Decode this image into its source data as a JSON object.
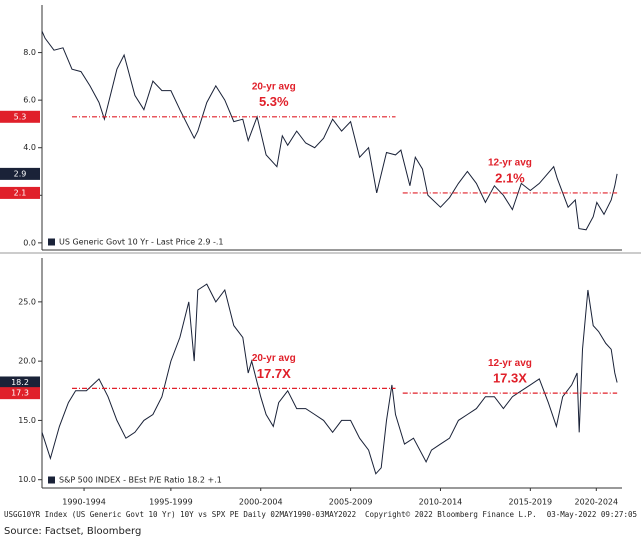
{
  "chart_data": [
    {
      "type": "line",
      "series": [
        {
          "name": "US Generic Govt 10 Yr - Last Price 2.9  -.1",
          "color": "#1a2238",
          "x": [
            1990.33,
            1990.5,
            1991,
            1991.5,
            1992,
            1992.5,
            1993,
            1993.5,
            1993.8,
            1994,
            1994.5,
            1994.9,
            1995.5,
            1996,
            1996.5,
            1997,
            1997.5,
            1998,
            1998.8,
            1999,
            1999.5,
            2000,
            2000.5,
            2001,
            2001.5,
            2001.8,
            2002.3,
            2002.8,
            2003.4,
            2003.7,
            2004,
            2004.5,
            2005,
            2005.5,
            2006,
            2006.5,
            2007,
            2007.5,
            2008,
            2008.5,
            2008.95,
            2009.5,
            2010,
            2010.3,
            2010.8,
            2011.1,
            2011.5,
            2011.8,
            2012.5,
            2013,
            2013.5,
            2014,
            2014.5,
            2015,
            2015.5,
            2016,
            2016.5,
            2017,
            2017.5,
            2018,
            2018.8,
            2019,
            2019.6,
            2020,
            2020.2,
            2020.6,
            2021,
            2021.2,
            2021.6,
            2022,
            2022.2,
            2022.33
          ],
          "values": [
            8.9,
            8.6,
            8.1,
            8.2,
            7.3,
            7.2,
            6.6,
            5.9,
            5.2,
            5.8,
            7.3,
            7.9,
            6.2,
            5.6,
            6.8,
            6.4,
            6.4,
            5.6,
            4.4,
            4.7,
            5.9,
            6.6,
            6.0,
            5.1,
            5.2,
            4.3,
            5.3,
            3.7,
            3.2,
            4.5,
            4.1,
            4.7,
            4.2,
            4.0,
            4.4,
            5.2,
            4.7,
            5.1,
            3.6,
            4.0,
            2.1,
            3.8,
            3.7,
            3.9,
            2.4,
            3.6,
            3.1,
            2.0,
            1.5,
            1.9,
            2.5,
            3.0,
            2.5,
            1.7,
            2.4,
            2.0,
            1.4,
            2.5,
            2.2,
            2.5,
            3.2,
            2.7,
            1.5,
            1.8,
            0.6,
            0.55,
            1.1,
            1.7,
            1.2,
            1.8,
            2.4,
            2.9
          ]
        }
      ],
      "xlim": [
        1990.33,
        2022.6
      ],
      "ylim": [
        -0.3,
        10
      ],
      "yticks": [
        {
          "value": 0,
          "label": "0.0"
        },
        {
          "value": 2,
          "label": "2.0"
        },
        {
          "value": 4,
          "label": "4.0"
        },
        {
          "value": 6,
          "label": "6.0"
        },
        {
          "value": 8,
          "label": "8.0"
        }
      ],
      "reference_lines": [
        {
          "label": "20-yr avg",
          "value_label": "5.3%",
          "value": 5.3,
          "x_range": [
            1992,
            2010
          ]
        },
        {
          "label": "12-yr avg",
          "value_label": "2.1%",
          "value": 2.1,
          "x_range": [
            2010.4,
            2022.33
          ]
        }
      ],
      "value_tags": [
        {
          "value": 5.3,
          "color": "#e0202a"
        },
        {
          "value": 2.9,
          "color": "#1a2238"
        },
        {
          "value": 2.1,
          "color": "#e0202a"
        }
      ]
    },
    {
      "type": "line",
      "series": [
        {
          "name": "S&P 500 INDEX - BEst P/E Ratio 18.2  +.1",
          "color": "#1a2238",
          "x": [
            1990.33,
            1990.8,
            1991.3,
            1991.8,
            1992.2,
            1992.8,
            1993.5,
            1994,
            1994.5,
            1995,
            1995.5,
            1996,
            1996.5,
            1997,
            1997.5,
            1998,
            1998.5,
            1998.8,
            1999,
            1999.5,
            2000,
            2000.5,
            2001,
            2001.5,
            2001.8,
            2002,
            2002.5,
            2002.8,
            2003.2,
            2003.5,
            2004,
            2004.5,
            2005,
            2005.5,
            2006,
            2006.5,
            2007,
            2007.5,
            2008,
            2008.5,
            2008.9,
            2009.2,
            2009.5,
            2009.8,
            2010,
            2010.5,
            2011,
            2011.7,
            2012,
            2012.5,
            2013,
            2013.5,
            2014,
            2014.5,
            2015,
            2015.5,
            2016,
            2016.5,
            2017,
            2017.5,
            2018,
            2018.5,
            2018.95,
            2019.3,
            2019.8,
            2020.1,
            2020.22,
            2020.4,
            2020.7,
            2021,
            2021.3,
            2021.7,
            2022,
            2022.2,
            2022.33
          ],
          "values": [
            14,
            11.8,
            14.5,
            16.5,
            17.5,
            17.5,
            18.5,
            17,
            15,
            13.5,
            14,
            15,
            15.5,
            17,
            20,
            22,
            25,
            20,
            26,
            26.5,
            25,
            26,
            23,
            22,
            19,
            20,
            17,
            15.5,
            14.5,
            16.5,
            17.5,
            16,
            16,
            15.5,
            15,
            14,
            15,
            15,
            13.5,
            12.5,
            10.5,
            11,
            15,
            18,
            15.5,
            13,
            13.5,
            11.5,
            12.5,
            13,
            13.5,
            15,
            15.5,
            16,
            17,
            17,
            16,
            17,
            17.5,
            18,
            18.5,
            16.5,
            14.5,
            17,
            18,
            19,
            14,
            21,
            26,
            23,
            22.5,
            21.5,
            21,
            19,
            18.2
          ]
        }
      ],
      "xlim": [
        1990.33,
        2022.6
      ],
      "ylim": [
        9.3,
        28.7
      ],
      "yticks": [
        {
          "value": 10,
          "label": "10.0"
        },
        {
          "value": 15,
          "label": "15.0"
        },
        {
          "value": 20,
          "label": "20.0"
        },
        {
          "value": 25,
          "label": "25.0"
        }
      ],
      "xticks": [
        {
          "value": 1992.67,
          "label": "1990-1994"
        },
        {
          "value": 1997.5,
          "label": "1995-1999"
        },
        {
          "value": 2002.5,
          "label": "2000-2004"
        },
        {
          "value": 2007.5,
          "label": "2005-2009"
        },
        {
          "value": 2012.5,
          "label": "2010-2014"
        },
        {
          "value": 2017.5,
          "label": "2015-2019"
        },
        {
          "value": 2021.17,
          "label": "2020-2024"
        }
      ],
      "reference_lines": [
        {
          "label": "20-yr avg",
          "value_label": "17.7X",
          "value": 17.7,
          "x_range": [
            1992,
            2010
          ]
        },
        {
          "label": "12-yr avg",
          "value_label": "17.3X",
          "value": 17.3,
          "x_range": [
            2010.4,
            2022.33
          ]
        }
      ],
      "value_tags": [
        {
          "value": 18.2,
          "color": "#1a2238"
        },
        {
          "value": 17.3,
          "color": "#e0202a"
        }
      ]
    }
  ],
  "footer": {
    "left": "USGG10YR Index (US Generic Govt 10 Yr) 10Y vs SPX PE  Daily 02MAY1990-03MAY2022",
    "center": "Copyright© 2022 Bloomberg Finance L.P.",
    "right": "03-May-2022 09:27:05",
    "source": "Source: Factset, Bloomberg"
  }
}
